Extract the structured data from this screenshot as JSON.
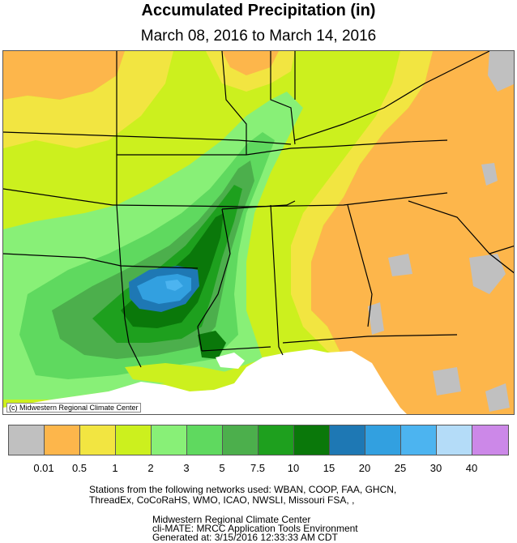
{
  "title": "Accumulated Precipitation (in)",
  "subtitle": "March 08, 2016 to March 14, 2016",
  "copyright": "(c) Midwestern Regional Climate Center",
  "legend": {
    "colors": [
      "#c0c0c0",
      "#fdb64b",
      "#f2e541",
      "#ccf01e",
      "#88f077",
      "#5fd95f",
      "#4caf4c",
      "#1ea01e",
      "#0a780a",
      "#1e78b4",
      "#32a0e0",
      "#4cb4f0",
      "#b4dcf8",
      "#cc88e8"
    ],
    "labels": [
      "0.01",
      "0.5",
      "1",
      "2",
      "3",
      "5",
      "7.5",
      "10",
      "15",
      "20",
      "25",
      "30",
      "40"
    ]
  },
  "footer": {
    "networks_line1": "Stations from the following networks used: WBAN, COOP, FAA, GHCN,",
    "networks_line2": "ThreadEx, CoCoRaHS, WMO, ICAO, NWSLI, Missouri FSA, ,",
    "credit_line1": "Midwestern Regional Climate Center",
    "credit_line2": "cli-MATE: MRCC Application Tools Environment",
    "credit_line3": "Generated at: 3/15/2016 12:33:33 AM CDT"
  }
}
